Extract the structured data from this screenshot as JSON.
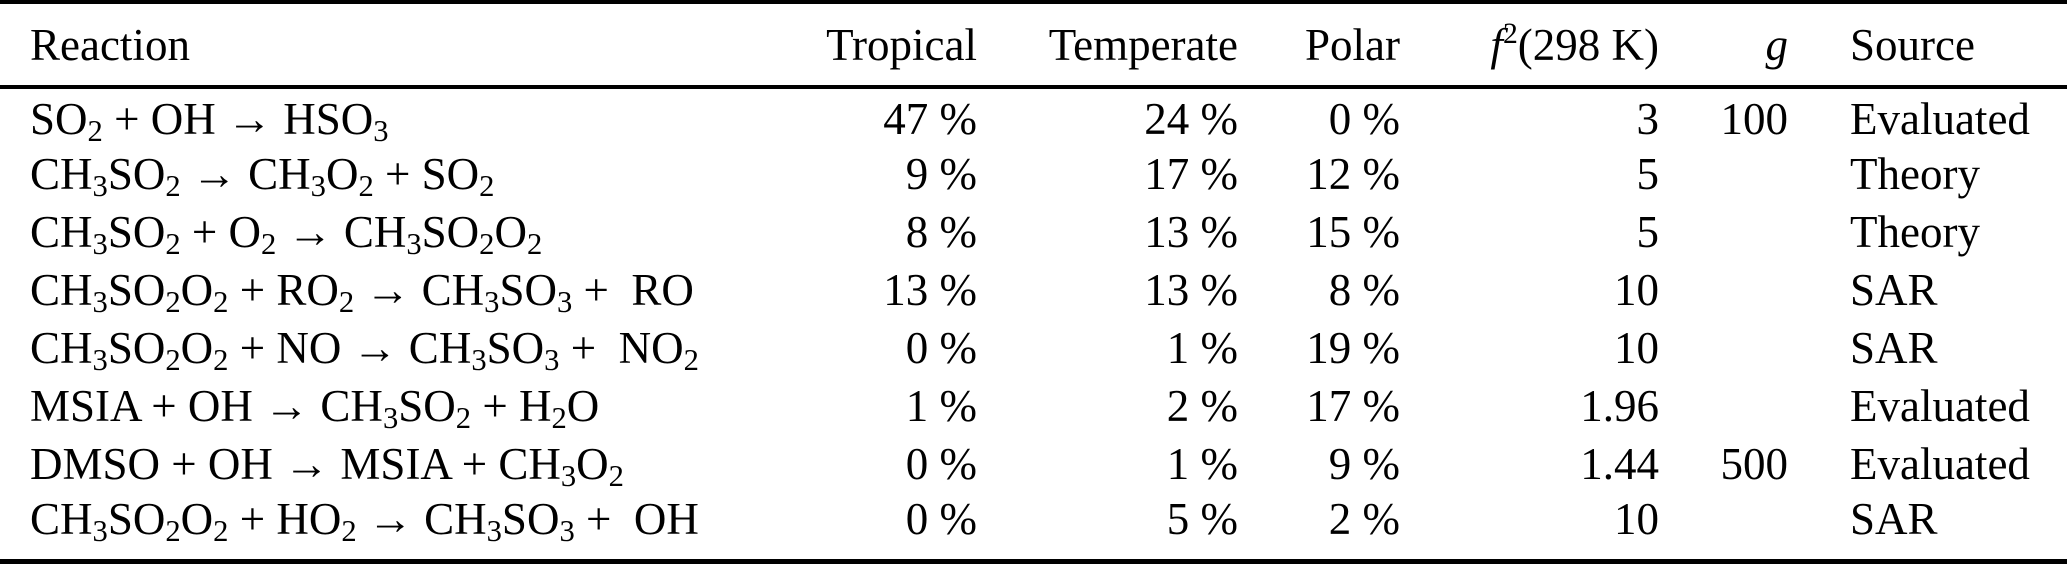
{
  "table": {
    "columns": [
      {
        "key": "reaction",
        "label": "Reaction"
      },
      {
        "key": "tropical",
        "label": "Tropical"
      },
      {
        "key": "temperate",
        "label": "Temperate"
      },
      {
        "key": "polar",
        "label": "Polar"
      },
      {
        "key": "f2",
        "label_f": "f",
        "label_sup": "2",
        "label_rest": "(298 K)"
      },
      {
        "key": "g",
        "label": "g"
      },
      {
        "key": "source",
        "label": "Source"
      }
    ],
    "rows": [
      {
        "reaction": "SO_2 + OH → HSO_3",
        "tropical": "47 %",
        "temperate": "24 %",
        "polar": "0 %",
        "f2": "3",
        "g": "100",
        "source": "Evaluated"
      },
      {
        "reaction": "CH_3SO_2 → CH_3O_2 + SO_2",
        "tropical": "9 %",
        "temperate": "17 %",
        "polar": "12 %",
        "f2": "5",
        "g": "",
        "source": "Theory"
      },
      {
        "reaction": "CH_3SO_2 + O_2 → CH_3SO_2O_2",
        "tropical": "8 %",
        "temperate": "13 %",
        "polar": "15 %",
        "f2": "5",
        "g": "",
        "source": "Theory"
      },
      {
        "reaction": "CH_3SO_2O_2 + RO_2 → CH_3SO_3 +  RO",
        "tropical": "13 %",
        "temperate": "13 %",
        "polar": "8 %",
        "f2": "10",
        "g": "",
        "source": "SAR"
      },
      {
        "reaction": "CH_3SO_2O_2 + NO → CH_3SO_3 +  NO_2",
        "tropical": "0 %",
        "temperate": "1 %",
        "polar": "19 %",
        "f2": "10",
        "g": "",
        "source": "SAR"
      },
      {
        "reaction": "MSIA + OH → CH_3SO_2 + H_2O",
        "tropical": "1 %",
        "temperate": "2 %",
        "polar": "17 %",
        "f2": "1.96",
        "g": "",
        "source": "Evaluated"
      },
      {
        "reaction": "DMSO + OH → MSIA + CH_3O_2",
        "tropical": "0 %",
        "temperate": "1 %",
        "polar": "9 %",
        "f2": "1.44",
        "g": "500",
        "source": "Evaluated"
      },
      {
        "reaction": "CH_3SO_2O_2 + HO_2 → CH_3SO_3 +  OH",
        "tropical": "0 %",
        "temperate": "5 %",
        "polar": "2 %",
        "f2": "10",
        "g": "",
        "source": "SAR"
      }
    ]
  }
}
